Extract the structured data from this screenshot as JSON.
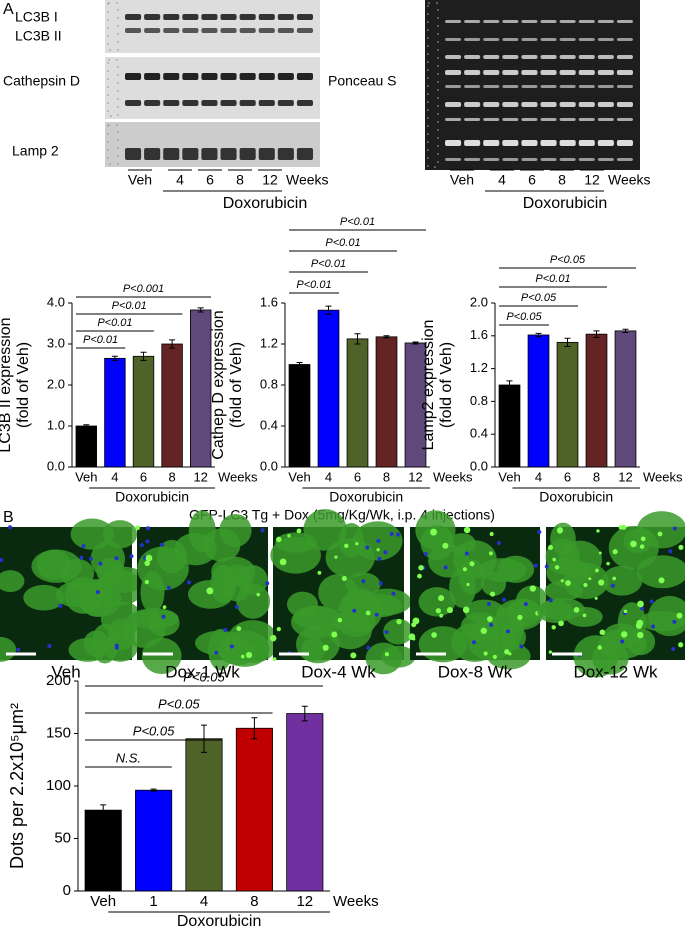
{
  "panels": {
    "a": "A",
    "b": "B"
  },
  "blots": {
    "labels": [
      "LC3B I",
      "LC3B II",
      "Cathepsin D",
      "Lamp 2",
      "Ponceau S"
    ],
    "lanes": [
      "Veh",
      "4",
      "6",
      "8",
      "12"
    ],
    "unit": "Weeks",
    "treatment": "Doxorubicin"
  },
  "micrographs": {
    "title": "GFP-LC3 Tg + Dox (5mg/Kg/Wk, i.p. 4 injections)",
    "labels": [
      "Veh",
      "Dox-1 Wk",
      "Dox-4 Wk",
      "Dox-8 Wk",
      "Dox-12 Wk"
    ]
  },
  "chart_data": [
    {
      "type": "bar",
      "y_label": [
        "LC3B II expression",
        "(fold of Veh)"
      ],
      "categories": [
        "Veh",
        "4",
        "6",
        "8",
        "12"
      ],
      "x_unit": "Weeks",
      "group_label": "Doxorubicin",
      "values": [
        1.0,
        2.65,
        2.7,
        3.0,
        3.83
      ],
      "errors": [
        0.03,
        0.05,
        0.1,
        0.1,
        0.05
      ],
      "colors": [
        "#000000",
        "#0000ff",
        "#4f6228",
        "#632423",
        "#5f497a"
      ],
      "significance": [
        null,
        "P<0.01",
        "P<0.01",
        "P<0.01",
        "P<0.001"
      ],
      "ylim": [
        0,
        4
      ],
      "yticks": [
        {
          "value": 0,
          "label": "0.0"
        },
        {
          "value": 1,
          "label": "1.0"
        },
        {
          "value": 2,
          "label": "2.0"
        },
        {
          "value": 3,
          "label": "3.0"
        },
        {
          "value": 4,
          "label": "4.0"
        }
      ]
    },
    {
      "type": "bar",
      "y_label": [
        "Cathep D expression",
        "(fold of Veh)"
      ],
      "categories": [
        "Veh",
        "4",
        "6",
        "8",
        "12"
      ],
      "x_unit": "Weeks",
      "group_label": "Doxorubicin",
      "values": [
        1.0,
        1.53,
        1.25,
        1.27,
        1.21
      ],
      "errors": [
        0.02,
        0.04,
        0.05,
        0.01,
        0.01
      ],
      "colors": [
        "#000000",
        "#0000ff",
        "#4f6228",
        "#632423",
        "#5f497a"
      ],
      "significance": [
        null,
        "P<0.01",
        "P<0.01",
        "P<0.01",
        "P<0.01"
      ],
      "ylim": [
        0,
        1.6
      ],
      "yticks": [
        {
          "value": 0,
          "label": "0.0"
        },
        0.4,
        0.8,
        1.2,
        1.6
      ]
    },
    {
      "type": "bar",
      "y_label": [
        "Lamp2 expression",
        "(fold of Veh)"
      ],
      "categories": [
        "Veh",
        "4",
        "6",
        "8",
        "12"
      ],
      "x_unit": "Weeks",
      "group_label": "Doxorubicin",
      "values": [
        1.0,
        1.61,
        1.52,
        1.62,
        1.66
      ],
      "errors": [
        0.05,
        0.02,
        0.05,
        0.04,
        0.02
      ],
      "colors": [
        "#000000",
        "#0000ff",
        "#4f6228",
        "#632423",
        "#5f497a"
      ],
      "significance": [
        null,
        "P<0.05",
        "P<0.05",
        "P<0.01",
        "P<0.05"
      ],
      "ylim": [
        0,
        2.0
      ],
      "yticks": [
        {
          "value": 0,
          "label": "0.0"
        },
        0.4,
        0.8,
        1.2,
        1.6,
        {
          "value": 2,
          "label": "2.0"
        }
      ]
    },
    {
      "type": "bar",
      "y_label": [
        "Dots per 2.2x10⁵μm²"
      ],
      "categories": [
        "Veh",
        "1",
        "4",
        "8",
        "12"
      ],
      "x_unit": "Weeks",
      "group_label": "Doxorubicin",
      "values": [
        77,
        96,
        145,
        155,
        169
      ],
      "errors": [
        5,
        1,
        13,
        10,
        7
      ],
      "colors": [
        "#000000",
        "#0000ff",
        "#4f6228",
        "#c00000",
        "#7030a0"
      ],
      "significance": [
        null,
        "N.S.",
        "P<0.05",
        "P<0.05",
        "P<0.05"
      ],
      "ylim": [
        0,
        200
      ],
      "yticks": [
        0,
        50,
        100,
        150,
        200
      ]
    }
  ]
}
